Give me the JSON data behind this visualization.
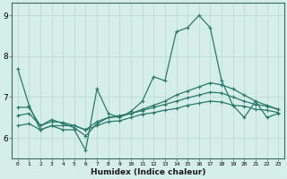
{
  "xlabel": "Humidex (Indice chaleur)",
  "background_color": "#d5eeea",
  "grid_color": "#c0ddd8",
  "line_color": "#2a7a6a",
  "x_values": [
    0,
    1,
    2,
    3,
    4,
    5,
    6,
    7,
    8,
    9,
    10,
    11,
    12,
    13,
    14,
    15,
    16,
    17,
    18,
    19,
    20,
    21,
    22,
    23
  ],
  "series1": [
    7.7,
    6.8,
    6.2,
    6.3,
    6.2,
    6.2,
    5.7,
    7.2,
    6.6,
    6.5,
    6.65,
    6.9,
    7.5,
    7.4,
    8.6,
    8.7,
    9.0,
    8.7,
    7.4,
    6.8,
    6.5,
    6.9,
    6.5,
    6.6
  ],
  "series2": [
    6.75,
    6.75,
    6.3,
    6.45,
    6.35,
    6.25,
    6.05,
    6.35,
    6.5,
    6.55,
    6.6,
    6.7,
    6.8,
    6.9,
    7.05,
    7.15,
    7.25,
    7.35,
    7.3,
    7.2,
    7.05,
    6.9,
    6.8,
    6.7
  ],
  "series3": [
    6.55,
    6.6,
    6.3,
    6.4,
    6.38,
    6.3,
    6.2,
    6.4,
    6.5,
    6.52,
    6.6,
    6.67,
    6.75,
    6.82,
    6.9,
    6.98,
    7.05,
    7.12,
    7.1,
    7.0,
    6.9,
    6.82,
    6.78,
    6.7
  ],
  "series4": [
    6.3,
    6.35,
    6.2,
    6.3,
    6.3,
    6.3,
    6.2,
    6.3,
    6.4,
    6.42,
    6.5,
    6.58,
    6.62,
    6.68,
    6.72,
    6.8,
    6.85,
    6.9,
    6.88,
    6.8,
    6.78,
    6.7,
    6.68,
    6.62
  ],
  "ylim": [
    5.5,
    9.3
  ],
  "yticks": [
    6,
    7,
    8,
    9
  ],
  "xticks": [
    0,
    1,
    2,
    3,
    4,
    5,
    6,
    7,
    8,
    9,
    10,
    11,
    12,
    13,
    14,
    15,
    16,
    17,
    18,
    19,
    20,
    21,
    22,
    23
  ],
  "xticklabels": [
    "0",
    "1",
    "2",
    "3",
    "4",
    "5",
    "6",
    "7",
    "8",
    "9",
    "10",
    "11",
    "12",
    "13",
    "14",
    "15",
    "16",
    "17",
    "18",
    "19",
    "20",
    "21",
    "22",
    "23"
  ]
}
